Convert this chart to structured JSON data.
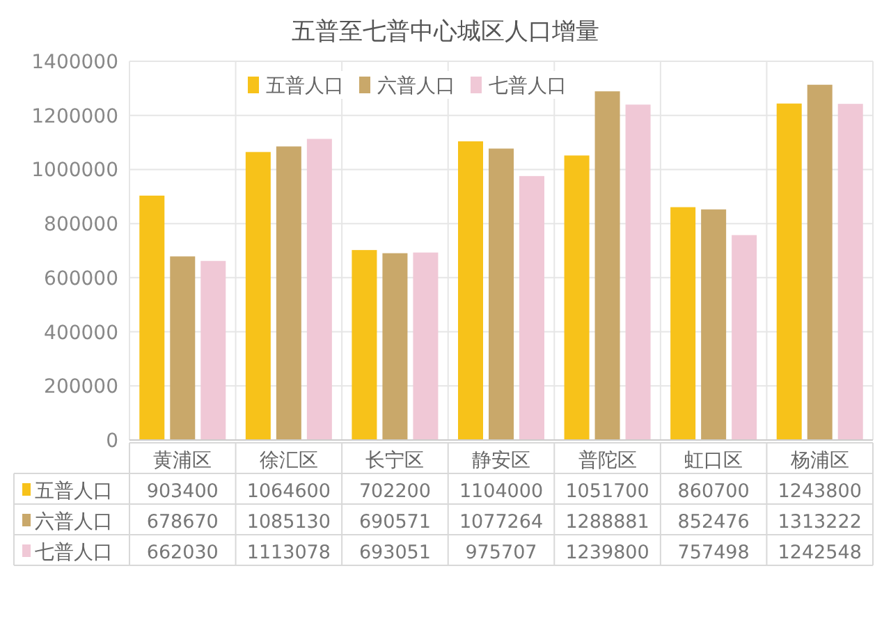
{
  "chart_data": {
    "type": "bar",
    "title": "五普至七普中心城区人口增量",
    "categories": [
      "黄浦区",
      "徐汇区",
      "长宁区",
      "静安区",
      "普陀区",
      "虹口区",
      "杨浦区"
    ],
    "series": [
      {
        "name": "五普人口",
        "color": "#f7c21a",
        "values": [
          903400,
          1064600,
          702200,
          1104000,
          1051700,
          860700,
          1243800
        ]
      },
      {
        "name": "六普人口",
        "color": "#c9a86a",
        "values": [
          678670,
          1085130,
          690571,
          1077264,
          1288881,
          852476,
          1313222
        ]
      },
      {
        "name": "七普人口",
        "color": "#f0c8d6",
        "values": [
          662030,
          1113078,
          693051,
          975707,
          1239800,
          757498,
          1242548
        ]
      }
    ],
    "ylim": [
      0,
      1400000
    ],
    "yticks": [
      0,
      200000,
      400000,
      600000,
      800000,
      1000000,
      1200000,
      1400000
    ],
    "grid": true,
    "legend": "top",
    "data_labels": true
  }
}
